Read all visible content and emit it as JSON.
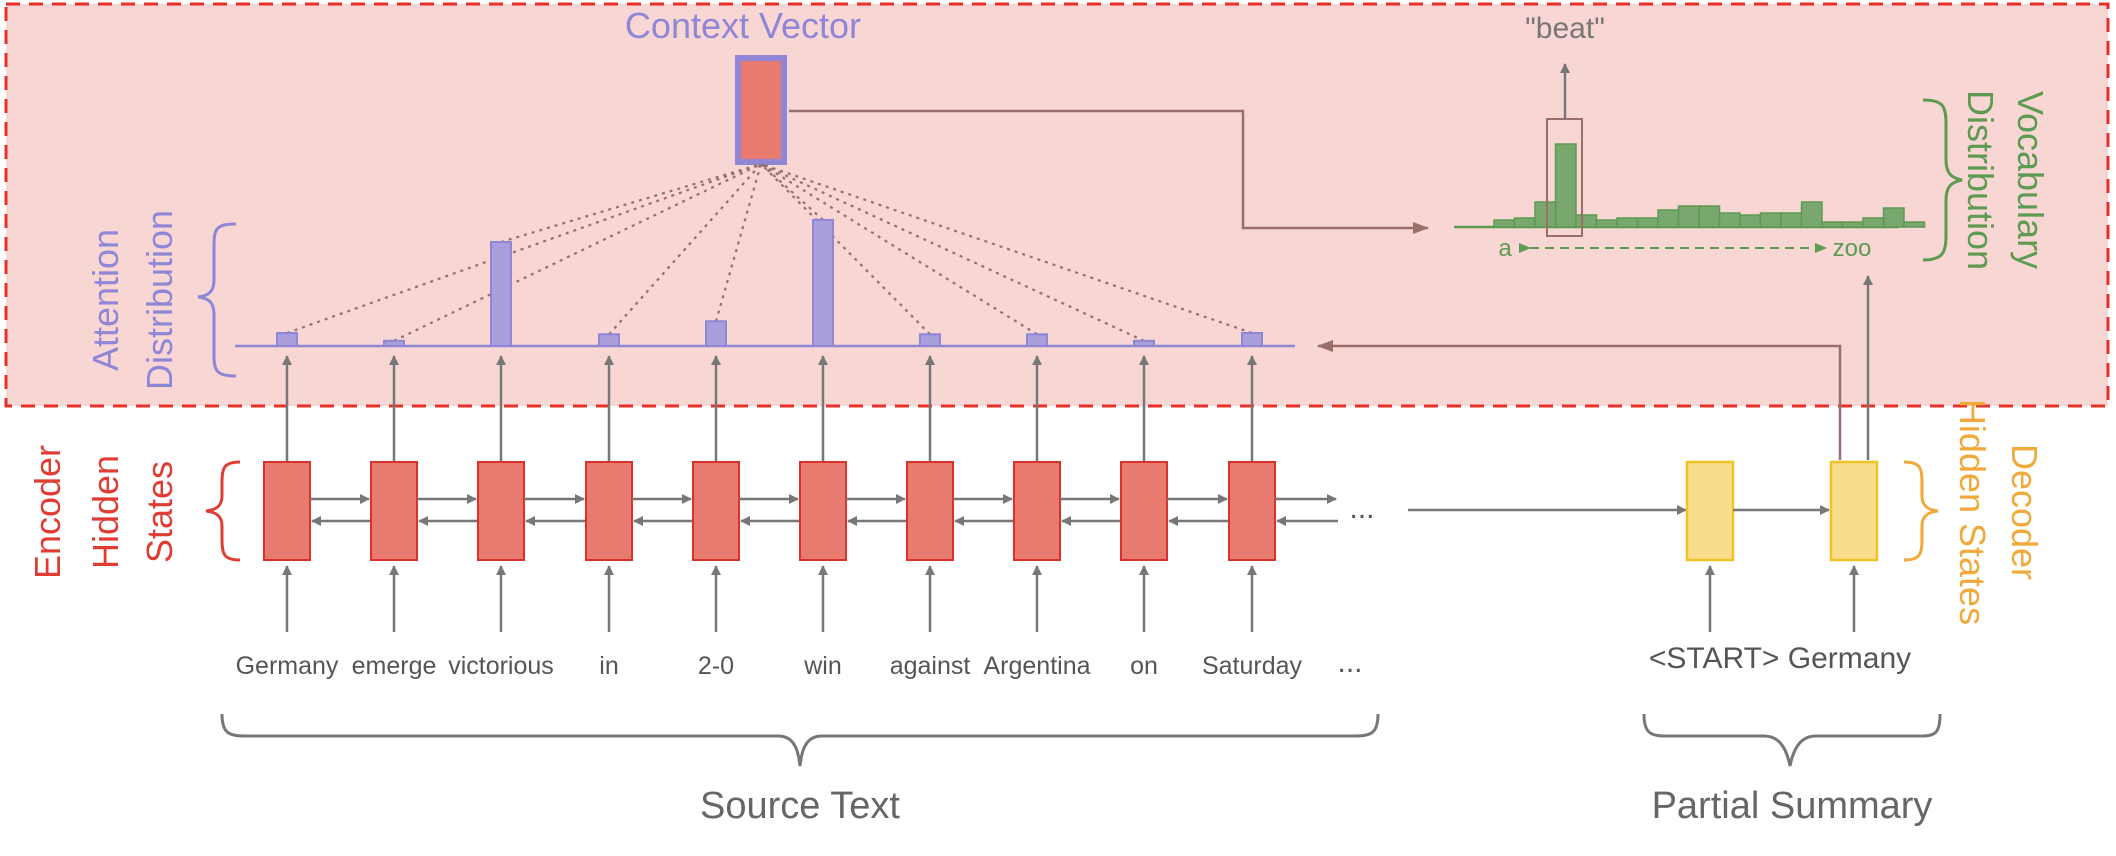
{
  "title": "Context Vector",
  "output_word": "\"beat\"",
  "labels": {
    "attention_line1": "Attention",
    "attention_line2": "Distribution",
    "vocab_line1": "Vocabulary",
    "vocab_line2": "Distribution",
    "encoder_line1": "Encoder",
    "encoder_line2": "Hidden",
    "encoder_line3": "States",
    "decoder_line1": "Decoder",
    "decoder_line2": "Hidden States",
    "source_text": "Source Text",
    "partial_summary": "Partial Summary",
    "vocab_start": "a",
    "vocab_end": "zoo"
  },
  "source_words": [
    "Germany",
    "emerge",
    "victorious",
    "in",
    "2-0",
    "win",
    "against",
    "Argentina",
    "on",
    "Saturday"
  ],
  "source_ellipsis": "...",
  "encoder_ellipsis": "...",
  "summary_text": "<START> Germany",
  "attention_weights": [
    0.1,
    0.04,
    0.8,
    0.09,
    0.19,
    0.97,
    0.09,
    0.09,
    0.04,
    0.1
  ],
  "vocab_bars": [
    0.07,
    0.09,
    0.25,
    0.83,
    0.12,
    0.07,
    0.09,
    0.09,
    0.17,
    0.21,
    0.21,
    0.14,
    0.12,
    0.14,
    0.14,
    0.25,
    0.05,
    0.05,
    0.09,
    0.19,
    0.05
  ],
  "vocab_highlight_index": 3,
  "colors": {
    "attention": "#8f86d6",
    "vocab": "#5d9a52",
    "encoder": "#df3d34",
    "decoder": "#f0a93a",
    "encoder_box": "#e87a70",
    "decoder_box": "#f9dd8d",
    "panel": "#f8d6d4",
    "dashed": "#e8302a"
  }
}
